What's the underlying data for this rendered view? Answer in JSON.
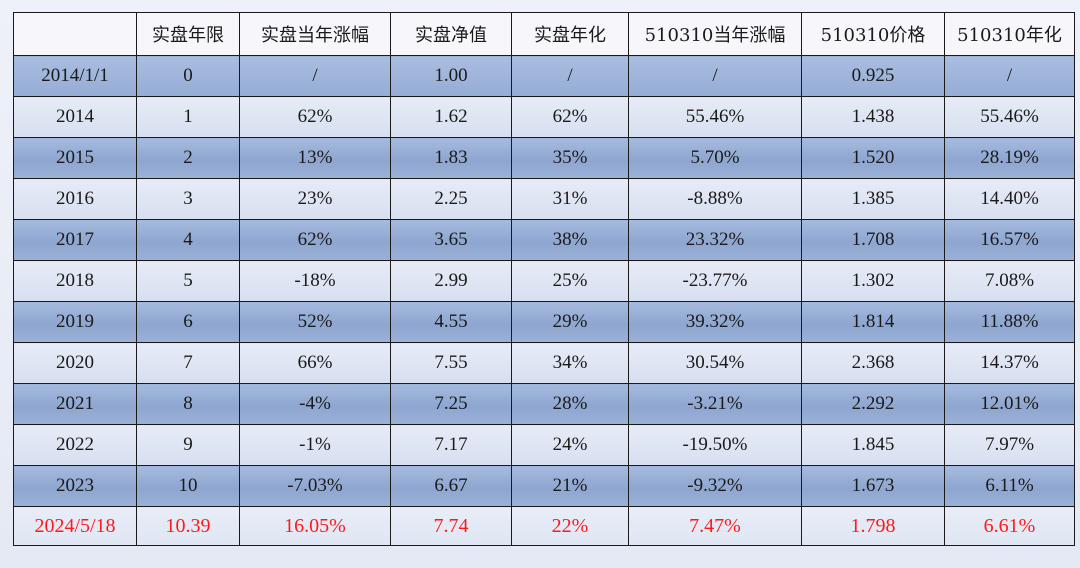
{
  "table": {
    "headers": [
      "",
      "实盘年限",
      "实盘当年涨幅",
      "实盘净值",
      "实盘年化",
      "510310当年涨幅",
      "510310价格",
      "510310年化"
    ],
    "rows": [
      [
        "2014/1/1",
        "0",
        "/",
        "1.00",
        "/",
        "/",
        "0.925",
        "/"
      ],
      [
        "2014",
        "1",
        "62%",
        "1.62",
        "62%",
        "55.46%",
        "1.438",
        "55.46%"
      ],
      [
        "2015",
        "2",
        "13%",
        "1.83",
        "35%",
        "5.70%",
        "1.520",
        "28.19%"
      ],
      [
        "2016",
        "3",
        "23%",
        "2.25",
        "31%",
        "-8.88%",
        "1.385",
        "14.40%"
      ],
      [
        "2017",
        "4",
        "62%",
        "3.65",
        "38%",
        "23.32%",
        "1.708",
        "16.57%"
      ],
      [
        "2018",
        "5",
        "-18%",
        "2.99",
        "25%",
        "-23.77%",
        "1.302",
        "7.08%"
      ],
      [
        "2019",
        "6",
        "52%",
        "4.55",
        "29%",
        "39.32%",
        "1.814",
        "11.88%"
      ],
      [
        "2020",
        "7",
        "66%",
        "7.55",
        "34%",
        "30.54%",
        "2.368",
        "14.37%"
      ],
      [
        "2021",
        "8",
        "-4%",
        "7.25",
        "28%",
        "-3.21%",
        "2.292",
        "12.01%"
      ],
      [
        "2022",
        "9",
        "-1%",
        "7.17",
        "24%",
        "-19.50%",
        "1.845",
        "7.97%"
      ],
      [
        "2023",
        "10",
        "-7.03%",
        "6.67",
        "21%",
        "-9.32%",
        "1.673",
        "6.11%"
      ],
      [
        "2024/5/18",
        "10.39",
        "16.05%",
        "7.74",
        "22%",
        "7.47%",
        "1.798",
        "6.61%"
      ]
    ]
  },
  "colors": {
    "dark_row": "#95acd4",
    "light_row": "#dde3f2",
    "highlight_text": "#ff1a1a",
    "border": "#1a1a1a"
  }
}
